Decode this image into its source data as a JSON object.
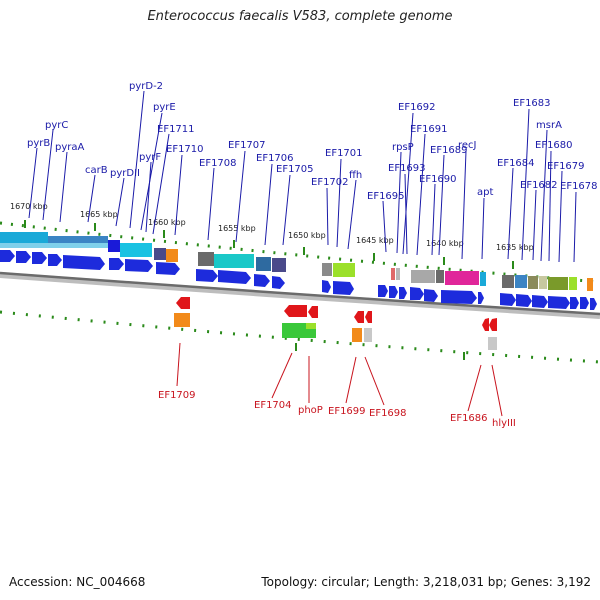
{
  "title": "Enterococcus faecalis V583, complete genome",
  "footer": {
    "accession": "Accession: NC_004668",
    "topology": "Topology: circular; Length: 3,218,031 bp; Genes: 3,192"
  },
  "colors": {
    "forward_label": "#1a1aa8",
    "reverse_label": "#c8141e",
    "arrow_forward": "#1d2bdc",
    "arrow_reverse": "#e0161a",
    "backbone": "#8a8a8a",
    "tick": "#2a8a1a"
  },
  "scale_labels": [
    "1670 kbp",
    "1665 kbp",
    "1660 kbp",
    "1655 kbp",
    "1650 kbp",
    "1645 kbp",
    "1640 kbp",
    "1635 kbp"
  ],
  "forward_labels": [
    "pyrB",
    "pyrC",
    "pyraA",
    "carB",
    "pyrDII",
    "pyrD-2",
    "pyrE",
    "pyrF",
    "EF1711",
    "EF1710",
    "EF1708",
    "EF1707",
    "EF1706",
    "EF1705",
    "EF1702",
    "EF1701",
    "ffh",
    "EF1695",
    "rpsP",
    "EF1692",
    "EF1693",
    "EF1691",
    "EF1690",
    "EF1689",
    "recJ",
    "apt",
    "EF1684",
    "EF1683",
    "EF1682",
    "msrA",
    "EF1680",
    "EF1679",
    "EF1678"
  ],
  "reverse_labels": [
    "EF1709",
    "EF1704",
    "phoP",
    "EF1699",
    "EF1698",
    "EF1686",
    "hlyIII"
  ]
}
